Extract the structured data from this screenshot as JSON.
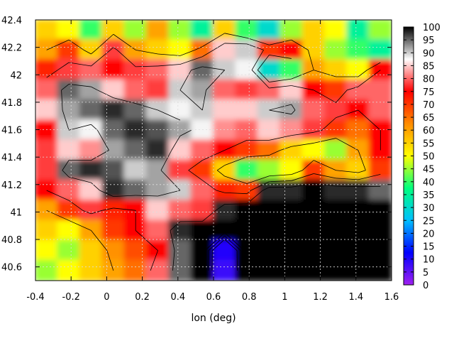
{
  "chart_data": {
    "type": "heatmap",
    "title": "",
    "xlabel": "lon (deg)",
    "ylabel": "",
    "xlim": [
      -0.4,
      1.6
    ],
    "ylim": [
      40.5,
      42.4
    ],
    "xticks": [
      -0.4,
      -0.2,
      0,
      0.2,
      0.4,
      0.6,
      0.8,
      1,
      1.2,
      1.4,
      1.6
    ],
    "xtick_labels": [
      "-0.4",
      "-0.2",
      "0",
      "0.2",
      "0.4",
      "0.6",
      "0.8",
      "1",
      "1.2",
      "1.4",
      "1.6"
    ],
    "yticks": [
      40.6,
      40.8,
      41,
      41.2,
      41.4,
      41.6,
      41.8,
      42,
      42.2,
      42.4
    ],
    "ytick_labels": [
      "40.6",
      "40.8",
      "41",
      "41.2",
      "41.4",
      "41.6",
      "41.8",
      "42",
      "42.2",
      "42.4"
    ],
    "colorbar": {
      "min": 0,
      "max": 100,
      "ticks": [
        0,
        5,
        10,
        15,
        20,
        25,
        30,
        35,
        40,
        45,
        50,
        55,
        60,
        65,
        70,
        75,
        80,
        85,
        90,
        95,
        100
      ],
      "tick_labels": [
        "0",
        "5",
        "10",
        "15",
        "20",
        "25",
        "30",
        "35",
        "40",
        "45",
        "50",
        "55",
        "60",
        "65",
        "70",
        "75",
        "80",
        "85",
        "90",
        "95",
        "100"
      ],
      "colors": [
        "#a020f0",
        "#0000ff",
        "#00bfff",
        "#00ff7f",
        "#ffff00",
        "#ff8c00",
        "#ff0000",
        "#ffffff",
        "#000000"
      ]
    },
    "grid": true,
    "contours": true,
    "approx_values": {
      "description_rows": "rows from north (42.4) to south (40.5), cols from west (-0.4) to east (1.6)",
      "grid": [
        [
          55,
          50,
          40,
          55,
          45,
          60,
          45,
          35,
          55,
          40,
          30,
          45,
          55,
          50,
          35,
          45
        ],
        [
          60,
          70,
          55,
          78,
          60,
          55,
          50,
          65,
          85,
          90,
          70,
          75,
          55,
          45,
          40,
          35
        ],
        [
          72,
          78,
          80,
          75,
          78,
          80,
          85,
          95,
          90,
          88,
          30,
          40,
          60,
          55,
          50,
          75
        ],
        [
          80,
          95,
          92,
          85,
          80,
          78,
          90,
          92,
          80,
          78,
          80,
          85,
          75,
          70,
          80,
          80
        ],
        [
          85,
          92,
          95,
          98,
          95,
          90,
          88,
          90,
          85,
          85,
          90,
          92,
          80,
          78,
          75,
          80
        ],
        [
          75,
          90,
          88,
          95,
          98,
          96,
          92,
          88,
          82,
          80,
          85,
          82,
          78,
          70,
          65,
          75
        ],
        [
          78,
          85,
          82,
          92,
          95,
          98,
          85,
          80,
          75,
          70,
          65,
          55,
          50,
          45,
          60,
          75
        ],
        [
          78,
          95,
          98,
          96,
          90,
          92,
          78,
          70,
          55,
          40,
          45,
          50,
          70,
          60,
          55,
          70
        ],
        [
          75,
          80,
          85,
          98,
          95,
          92,
          90,
          80,
          72,
          70,
          98,
          98,
          100,
          98,
          98,
          95
        ],
        [
          60,
          70,
          78,
          72,
          75,
          85,
          80,
          78,
          98,
          100,
          100,
          100,
          100,
          100,
          100,
          100
        ],
        [
          55,
          50,
          60,
          70,
          75,
          80,
          98,
          100,
          100,
          100,
          100,
          100,
          100,
          100,
          100,
          100
        ],
        [
          50,
          45,
          55,
          62,
          68,
          75,
          95,
          100,
          10,
          100,
          100,
          100,
          100,
          100,
          100,
          100
        ],
        [
          45,
          50,
          55,
          60,
          65,
          80,
          95,
          100,
          8,
          100,
          100,
          100,
          100,
          100,
          100,
          100
        ]
      ]
    }
  }
}
